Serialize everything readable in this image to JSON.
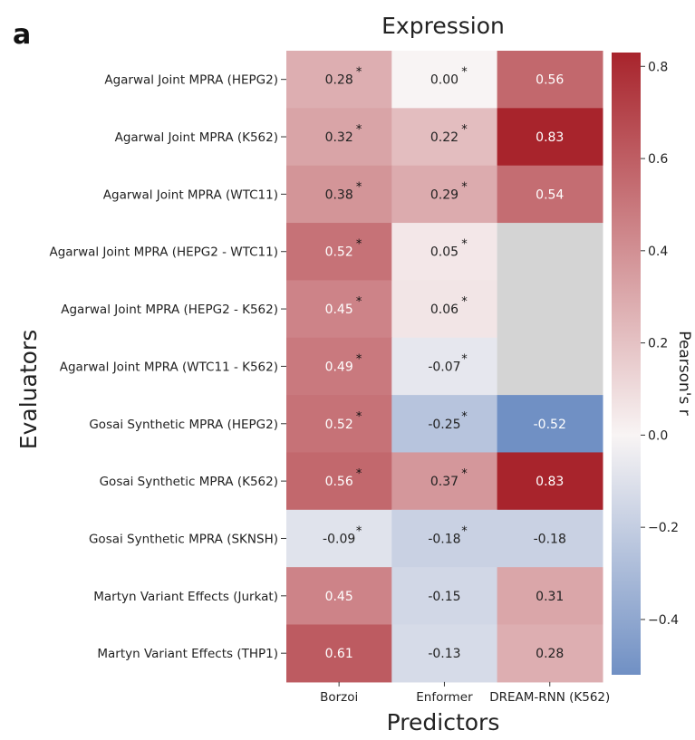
{
  "chart_data": {
    "type": "heatmap",
    "panel_label": "a",
    "title": "Expression",
    "xlabel": "Predictors",
    "ylabel": "Evaluators",
    "columns": [
      "Borzoi",
      "Enformer",
      "DREAM-RNN (K562)"
    ],
    "rows": [
      "Agarwal Joint MPRA (HEPG2)",
      "Agarwal Joint MPRA (K562)",
      "Agarwal Joint MPRA (WTC11)",
      "Agarwal Joint MPRA (HEPG2 - WTC11)",
      "Agarwal Joint MPRA (HEPG2 - K562)",
      "Agarwal Joint MPRA (WTC11 - K562)",
      "Gosai Synthetic MPRA (HEPG2)",
      "Gosai Synthetic MPRA (K562)",
      "Gosai Synthetic MPRA (SKNSH)",
      "Martyn Variant Effects (Jurkat)",
      "Martyn Variant Effects (THP1)"
    ],
    "values": [
      [
        0.28,
        0.0,
        0.56
      ],
      [
        0.32,
        0.22,
        0.83
      ],
      [
        0.38,
        0.29,
        0.54
      ],
      [
        0.52,
        0.05,
        null
      ],
      [
        0.45,
        0.06,
        null
      ],
      [
        0.49,
        -0.07,
        null
      ],
      [
        0.52,
        -0.25,
        -0.52
      ],
      [
        0.56,
        0.37,
        0.83
      ],
      [
        -0.09,
        -0.18,
        -0.18
      ],
      [
        0.45,
        -0.15,
        0.31
      ],
      [
        0.61,
        -0.13,
        0.28
      ]
    ],
    "labels": [
      [
        "0.28",
        "0.00",
        "0.56"
      ],
      [
        "0.32",
        "0.22",
        "0.83"
      ],
      [
        "0.38",
        "0.29",
        "0.54"
      ],
      [
        "0.52",
        "0.05",
        ""
      ],
      [
        "0.45",
        "0.06",
        ""
      ],
      [
        "0.49",
        "-0.07",
        ""
      ],
      [
        "0.52",
        "-0.25",
        "-0.52"
      ],
      [
        "0.56",
        "0.37",
        "0.83"
      ],
      [
        "-0.09",
        "-0.18",
        "-0.18"
      ],
      [
        "0.45",
        "-0.15",
        "0.31"
      ],
      [
        "0.61",
        "-0.13",
        "0.28"
      ]
    ],
    "significant": [
      [
        true,
        true,
        false
      ],
      [
        true,
        true,
        false
      ],
      [
        true,
        true,
        false
      ],
      [
        true,
        true,
        false
      ],
      [
        true,
        true,
        false
      ],
      [
        true,
        true,
        false
      ],
      [
        true,
        true,
        false
      ],
      [
        true,
        true,
        false
      ],
      [
        true,
        true,
        false
      ],
      [
        false,
        false,
        false
      ],
      [
        false,
        false,
        false
      ]
    ],
    "star_symbol": "*",
    "colorbar": {
      "label": "Pearson's r",
      "vmin": -0.52,
      "vmax": 0.83,
      "ticks": [
        -0.4,
        -0.2,
        0.0,
        0.2,
        0.4,
        0.6,
        0.8
      ],
      "tick_labels": [
        "−0.4",
        "−0.2",
        "0.0",
        "0.2",
        "0.4",
        "0.6",
        "0.8"
      ],
      "colormap": [
        "#7090c4",
        "#f8f4f4",
        "#a8242c"
      ]
    },
    "missing_color": "#d4d4d4"
  }
}
